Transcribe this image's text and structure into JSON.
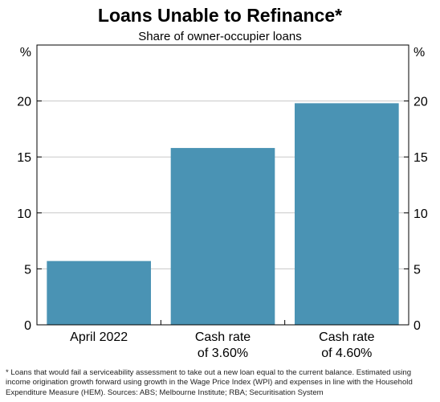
{
  "chart_data": {
    "type": "bar",
    "title": "Loans Unable to Refinance*",
    "subtitle": "Share of owner-occupier loans",
    "unit_left": "%",
    "unit_right": "%",
    "categories": [
      [
        "April 2022"
      ],
      [
        "Cash rate",
        "of 3.60%"
      ],
      [
        "Cash rate",
        "of 4.60%"
      ]
    ],
    "values": [
      5.7,
      15.8,
      19.8
    ],
    "ylim": [
      0,
      25
    ],
    "yticks": [
      0,
      5,
      10,
      15,
      20
    ],
    "bar_color": "#4a93b4",
    "grid": true
  },
  "footnote": "* Loans that would fail a serviceability assessment to take out a new loan equal to the current balance. Estimated using income origination growth forward using growth in the Wage Price Index (WPI) and expenses in line with the Household Expenditure Measure (HEM). Sources: ABS; Melbourne Institute; RBA; Securitisation System"
}
